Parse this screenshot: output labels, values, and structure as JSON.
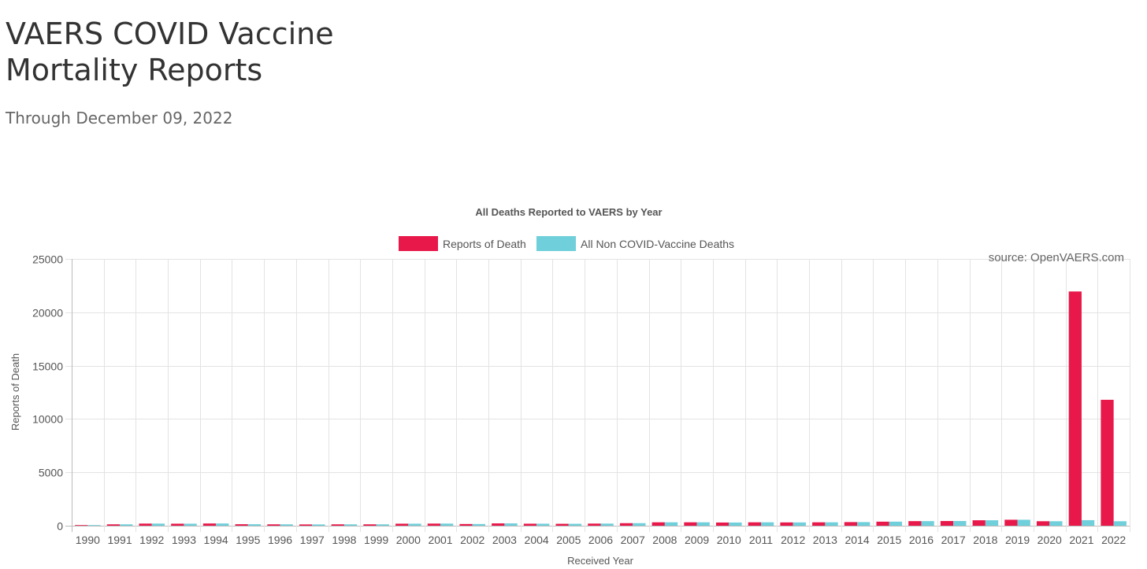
{
  "page": {
    "title": "VAERS COVID Vaccine Mortality Reports",
    "subtitle": "Through December 09, 2022"
  },
  "chart_data": {
    "type": "bar",
    "title": "All Deaths Reported to VAERS by Year",
    "source": "source: OpenVAERS.com",
    "xlabel": "Received Year",
    "ylabel": "Reports of Death",
    "ylim": [
      0,
      25000
    ],
    "yticks": [
      0,
      5000,
      10000,
      15000,
      20000,
      25000
    ],
    "grid": true,
    "legend_position": "top",
    "categories": [
      "1990",
      "1991",
      "1992",
      "1993",
      "1994",
      "1995",
      "1996",
      "1997",
      "1998",
      "1999",
      "2000",
      "2001",
      "2002",
      "2003",
      "2004",
      "2005",
      "2006",
      "2007",
      "2008",
      "2009",
      "2010",
      "2011",
      "2012",
      "2013",
      "2014",
      "2015",
      "2016",
      "2017",
      "2018",
      "2019",
      "2020",
      "2021",
      "2022"
    ],
    "series": [
      {
        "name": "Reports of Death",
        "color": "#e8194a",
        "values": [
          60,
          130,
          200,
          190,
          210,
          140,
          130,
          120,
          130,
          130,
          190,
          200,
          160,
          220,
          190,
          180,
          200,
          240,
          320,
          320,
          300,
          320,
          310,
          320,
          340,
          380,
          430,
          440,
          510,
          560,
          420,
          21950,
          11800
        ]
      },
      {
        "name": "All Non COVID-Vaccine Deaths",
        "color": "#6fcfda",
        "values": [
          60,
          130,
          200,
          190,
          210,
          140,
          130,
          120,
          130,
          130,
          190,
          200,
          160,
          220,
          190,
          180,
          200,
          240,
          320,
          320,
          300,
          320,
          310,
          320,
          340,
          380,
          430,
          440,
          510,
          560,
          420,
          520,
          420
        ]
      }
    ]
  }
}
